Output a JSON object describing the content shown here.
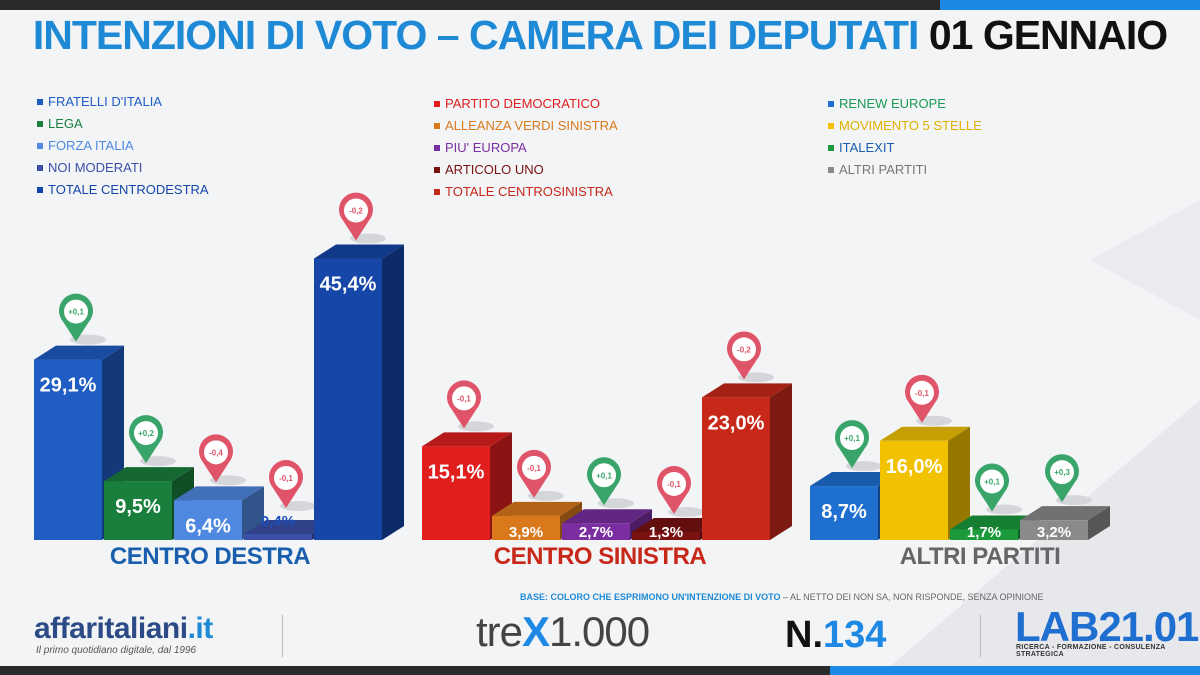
{
  "title": {
    "main": "INTENZIONI DI VOTO – CAMERA DEI DEPUTATI",
    "date": "01 GENNAIO"
  },
  "colors": {
    "accent": "#1e8ad6",
    "up": "#3aa56a",
    "down": "#e0546a"
  },
  "legends": [
    {
      "items": [
        {
          "label": "FRATELLI D'ITALIA",
          "color": "#1f5cc4"
        },
        {
          "label": "LEGA",
          "color": "#1a7f3c"
        },
        {
          "label": "FORZA ITALIA",
          "color": "#4f88e0"
        },
        {
          "label": "NOI MODERATI",
          "color": "#3a4fa8"
        },
        {
          "label": "TOTALE CENTRODESTRA",
          "color": "#1546a8"
        }
      ]
    },
    {
      "items": [
        {
          "label": "PARTITO DEMOCRATICO",
          "color": "#e01e1e"
        },
        {
          "label": "ALLEANZA VERDI SINISTRA",
          "color": "#d9791c"
        },
        {
          "label": "PIU' EUROPA",
          "color": "#7a2ea0"
        },
        {
          "label": "ARTICOLO UNO",
          "color": "#7a1212"
        },
        {
          "label": "TOTALE CENTROSINISTRA",
          "color": "#c8281a"
        }
      ]
    },
    {
      "items": [
        {
          "label": "RENEW EUROPE",
          "color": "#1f6fd0",
          "textColor": "#1a9a55"
        },
        {
          "label": "MOVIMENTO 5 STELLE",
          "color": "#f2c200",
          "textColor": "#e0b000"
        },
        {
          "label": "ITALEXIT",
          "color": "#1a9a3a",
          "textColor": "#1a5fae"
        },
        {
          "label": "ALTRI PARTITI",
          "color": "#8a8a8a",
          "textColor": "#777"
        }
      ]
    }
  ],
  "chart_data": {
    "type": "bar",
    "unit": "%",
    "groups": [
      {
        "name": "CENTRO DESTRA",
        "labelColor": "#1a5fae",
        "bars": [
          {
            "party": "FRATELLI D'ITALIA",
            "value": 29.1,
            "label": "29,1%",
            "change": "+0,1",
            "dir": "up",
            "color": "#1f5cc4"
          },
          {
            "party": "LEGA",
            "value": 9.5,
            "label": "9,5%",
            "change": "+0,2",
            "dir": "up",
            "color": "#1a7f3c"
          },
          {
            "party": "FORZA ITALIA",
            "value": 6.4,
            "label": "6,4%",
            "change": "-0,4",
            "dir": "down",
            "color": "#4f88e0"
          },
          {
            "party": "NOI MODERATI",
            "value": 0.4,
            "label": "0,4%",
            "change": "-0,1",
            "dir": "down",
            "color": "#3a4fa8"
          },
          {
            "party": "TOTALE CENTRODESTRA",
            "value": 45.4,
            "label": "45,4%",
            "change": "-0,2",
            "dir": "down",
            "color": "#1546a8"
          }
        ]
      },
      {
        "name": "CENTRO SINISTRA",
        "labelColor": "#c8281a",
        "bars": [
          {
            "party": "PARTITO DEMOCRATICO",
            "value": 15.1,
            "label": "15,1%",
            "change": "-0,1",
            "dir": "down",
            "color": "#e01e1e"
          },
          {
            "party": "ALLEANZA VERDI SINISTRA",
            "value": 3.9,
            "label": "3,9%",
            "change": "-0,1",
            "dir": "down",
            "color": "#d9791c"
          },
          {
            "party": "PIU' EUROPA",
            "value": 2.7,
            "label": "2,7%",
            "change": "+0,1",
            "dir": "up",
            "color": "#7a2ea0"
          },
          {
            "party": "ARTICOLO UNO",
            "value": 1.3,
            "label": "1,3%",
            "change": "-0,1",
            "dir": "down",
            "color": "#7a1212"
          },
          {
            "party": "TOTALE CENTROSINISTRA",
            "value": 23.0,
            "label": "23,0%",
            "change": "-0,2",
            "dir": "down",
            "color": "#c8281a"
          }
        ]
      },
      {
        "name": "ALTRI PARTITI",
        "labelColor": "#666",
        "bars": [
          {
            "party": "RENEW EUROPE",
            "value": 8.7,
            "label": "8,7%",
            "change": "+0,1",
            "dir": "up",
            "color": "#1f6fd0"
          },
          {
            "party": "MOVIMENTO 5 STELLE",
            "value": 16.0,
            "label": "16,0%",
            "change": "-0,1",
            "dir": "down",
            "color": "#f2c200"
          },
          {
            "party": "ITALEXIT",
            "value": 1.7,
            "label": "1,7%",
            "change": "+0,1",
            "dir": "up",
            "color": "#1a9a3a"
          },
          {
            "party": "ALTRI PARTITI",
            "value": 3.2,
            "label": "3,2%",
            "change": "+0,3",
            "dir": "up",
            "color": "#8a8a8a"
          }
        ]
      }
    ]
  },
  "footer": {
    "aff_name": "affaritaliani",
    "aff_tld": ".it",
    "aff_tagline": "Il primo quotidiano digitale, dal 1996",
    "base_bold": "BASE: COLORO CHE ESPRIMONO UN'INTENZIONE DI VOTO",
    "base_rest": " – AL NETTO DEI NON SA, NON RISPONDE, SENZA OPINIONE",
    "trex_a": "tre",
    "trex_x": "X",
    "trex_b": "1.000",
    "num_prefix": "N.",
    "num_value": "134",
    "lab_name": "LAB21.01",
    "lab_tagline": "RICERCA - FORMAZIONE - CONSULENZA STRATEGICA"
  }
}
